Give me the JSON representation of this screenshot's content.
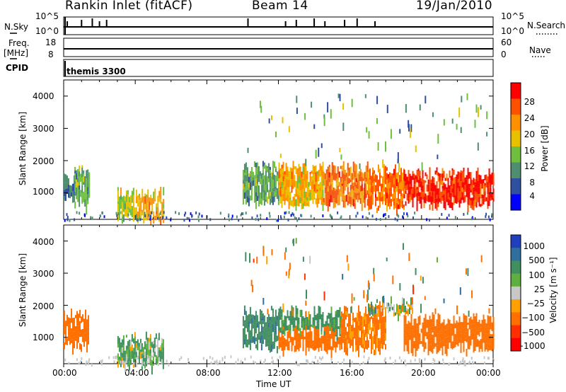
{
  "header": {
    "title": "Rankin Inlet (fitACF)",
    "beam": "Beam 14",
    "date": "19/Jan/2010"
  },
  "ancillary": {
    "nsky_label": "N.Sky",
    "nsearch_label": "N.Search",
    "nsky_ticks": [
      "10^5",
      "10^0"
    ],
    "nsearch_ticks": [
      "10^5",
      "10^0"
    ],
    "freq_label_top": "Freq.",
    "freq_label_bottom": "[MHz]",
    "freq_ticks": [
      "18",
      "8"
    ],
    "nave_label": "Nave",
    "nave_ticks": [
      "60",
      "0"
    ],
    "cpid_label": "CPID",
    "cpid_value": "themis 3300"
  },
  "x_axis": {
    "label": "Time UT",
    "ticks": [
      "00:00",
      "04:00",
      "08:00",
      "12:00",
      "16:00",
      "20:00",
      "00:00"
    ]
  },
  "panels": [
    {
      "ylabel": "Slant Range [km]",
      "yticks": [
        "4000",
        "3000",
        "2000",
        "1000"
      ],
      "colorbar_label": "Power [dB]",
      "colorbar_ticks": [
        "28",
        "24",
        "20",
        "16",
        "12",
        "8",
        "4"
      ],
      "colors": [
        "#0000ff",
        "#2f4f9f",
        "#4f8f6f",
        "#6fbf3f",
        "#e8c000",
        "#ff9000",
        "#ff5000",
        "#ff0000"
      ]
    },
    {
      "ylabel": "Slant Range [km]",
      "yticks": [
        "4000",
        "3000",
        "2000",
        "1000"
      ],
      "colorbar_label": "Velocity [m s⁻¹]",
      "colorbar_ticks": [
        "1000",
        "500",
        "100",
        "25",
        "−25",
        "−100",
        "−500",
        "−1000"
      ],
      "colors": [
        "#1f3fbf",
        "#2f6f9f",
        "#3f8f5f",
        "#5faf3f",
        "#c8c8c8",
        "#ffa000",
        "#ff7000",
        "#ff3000",
        "#ff0000"
      ]
    }
  ],
  "chart_data": [
    {
      "type": "heatmap",
      "title": "Power [dB]",
      "xlabel": "Time UT",
      "ylabel": "Slant Range [km]",
      "xlim": [
        "00:00",
        "24:00"
      ],
      "ylim": [
        180,
        4500
      ],
      "color_scale": [
        4,
        8,
        12,
        16,
        20,
        24,
        28
      ],
      "regions": [
        {
          "t": [
            0.0,
            0.6
          ],
          "range": [
            900,
            1400
          ],
          "value": 8
        },
        {
          "t": [
            0.6,
            1.4
          ],
          "range": [
            700,
            1700
          ],
          "value": 12
        },
        {
          "t": [
            3.0,
            4.2
          ],
          "range": [
            300,
            1000
          ],
          "value": 16
        },
        {
          "t": [
            4.2,
            5.6
          ],
          "range": [
            200,
            1000
          ],
          "value": 20
        },
        {
          "t": [
            10.0,
            12.0
          ],
          "range": [
            800,
            1800
          ],
          "value": 12
        },
        {
          "t": [
            12.0,
            14.5
          ],
          "range": [
            700,
            1800
          ],
          "value": 20
        },
        {
          "t": [
            14.5,
            17.0
          ],
          "range": [
            700,
            1800
          ],
          "value": 24
        },
        {
          "t": [
            17.0,
            19.0
          ],
          "range": [
            600,
            1700
          ],
          "value": 24
        },
        {
          "t": [
            19.0,
            24.0
          ],
          "range": [
            700,
            1600
          ],
          "value": 28
        }
      ]
    },
    {
      "type": "heatmap",
      "title": "Velocity [m s⁻¹]",
      "xlabel": "Time UT",
      "ylabel": "Slant Range [km]",
      "xlim": [
        "00:00",
        "24:00"
      ],
      "ylim": [
        180,
        4500
      ],
      "color_scale": [
        1000,
        500,
        100,
        25,
        -25,
        -100,
        -500,
        -1000
      ],
      "regions": [
        {
          "t": [
            0.0,
            1.4
          ],
          "range": [
            800,
            1700
          ],
          "value": -300
        },
        {
          "t": [
            3.0,
            5.6
          ],
          "range": [
            200,
            1000
          ],
          "value": 100
        },
        {
          "t": [
            10.0,
            12.0
          ],
          "range": [
            800,
            1800
          ],
          "value": 400
        },
        {
          "t": [
            12.0,
            15.5
          ],
          "range": [
            1200,
            1800
          ],
          "value": 200
        },
        {
          "t": [
            12.0,
            15.5
          ],
          "range": [
            700,
            1200
          ],
          "value": -300
        },
        {
          "t": [
            15.5,
            18.0
          ],
          "range": [
            700,
            1800
          ],
          "value": -200
        },
        {
          "t": [
            17.0,
            19.5
          ],
          "range": [
            1800,
            2100
          ],
          "value": 0
        },
        {
          "t": [
            19.0,
            24.0
          ],
          "range": [
            700,
            1600
          ],
          "value": -300
        }
      ]
    }
  ]
}
